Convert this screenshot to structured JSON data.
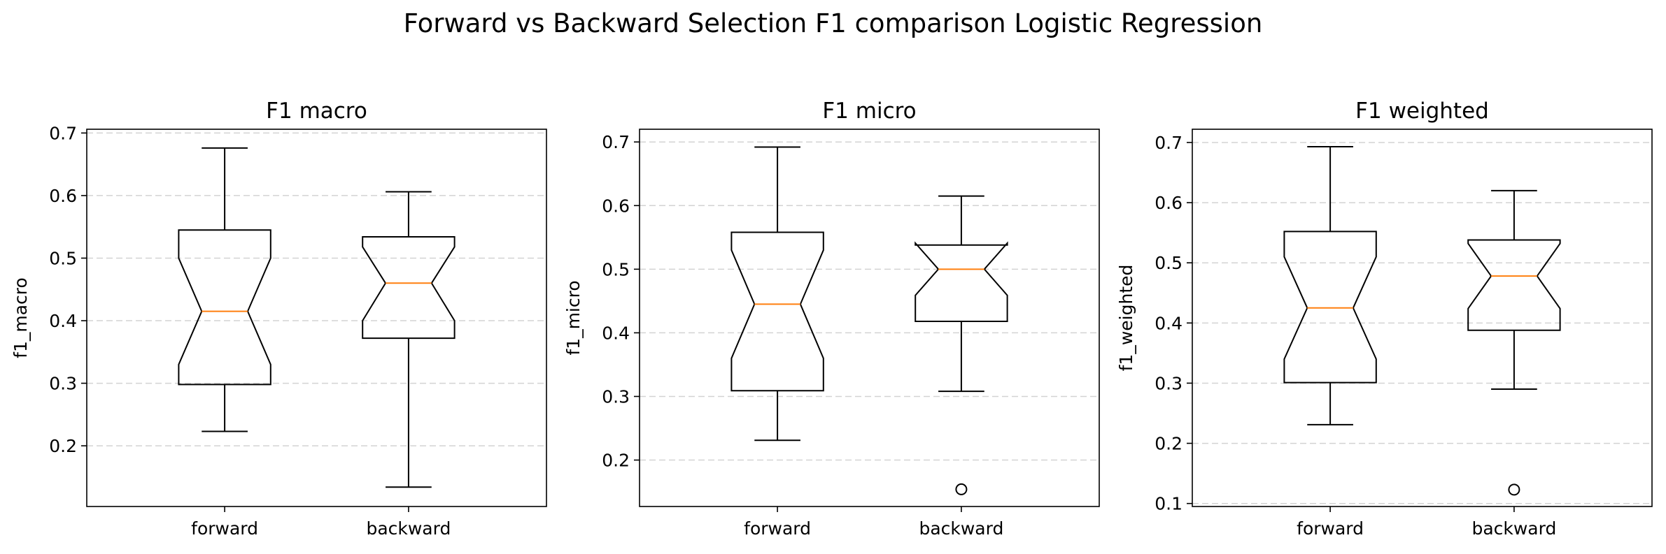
{
  "figure": {
    "title": "Forward vs Backward Selection F1 comparison Logistic Regression"
  },
  "colors": {
    "box": "#000000",
    "median": "#ff7f0e",
    "grid": "#d3d3d3"
  },
  "chart_data": [
    {
      "type": "boxplot",
      "title": "F1 macro",
      "ylabel": "f1_macro",
      "categories": [
        "forward",
        "backward"
      ],
      "ylim": [
        0.103,
        0.706
      ],
      "yticks": [
        0.2,
        0.3,
        0.4,
        0.5,
        0.6,
        0.7
      ],
      "ytick_labels": [
        "0.2",
        "0.3",
        "0.4",
        "0.5",
        "0.6",
        "0.7"
      ],
      "grid": true,
      "notched": true,
      "boxes": [
        {
          "whislo": 0.223,
          "q1": 0.298,
          "med": 0.415,
          "q3": 0.545,
          "whishi": 0.676,
          "cilo": 0.33,
          "cihi": 0.5,
          "fliers": []
        },
        {
          "whislo": 0.134,
          "q1": 0.372,
          "med": 0.46,
          "q3": 0.534,
          "whishi": 0.606,
          "cilo": 0.4,
          "cihi": 0.518,
          "fliers": []
        }
      ]
    },
    {
      "type": "boxplot",
      "title": "F1 micro",
      "ylabel": "f1_micro",
      "categories": [
        "forward",
        "backward"
      ],
      "ylim": [
        0.127,
        0.72
      ],
      "yticks": [
        0.2,
        0.3,
        0.4,
        0.5,
        0.6,
        0.7
      ],
      "ytick_labels": [
        "0.2",
        "0.3",
        "0.4",
        "0.5",
        "0.6",
        "0.7"
      ],
      "grid": true,
      "notched": true,
      "boxes": [
        {
          "whislo": 0.231,
          "q1": 0.309,
          "med": 0.445,
          "q3": 0.558,
          "whishi": 0.692,
          "cilo": 0.36,
          "cihi": 0.53,
          "fliers": []
        },
        {
          "whislo": 0.308,
          "q1": 0.418,
          "med": 0.5,
          "q3": 0.538,
          "whishi": 0.615,
          "cilo": 0.459,
          "cihi": 0.541,
          "fliers": [
            0.154
          ]
        }
      ]
    },
    {
      "type": "boxplot",
      "title": "F1 weighted",
      "ylabel": "f1_weighted",
      "categories": [
        "forward",
        "backward"
      ],
      "ylim": [
        0.095,
        0.722
      ],
      "yticks": [
        0.1,
        0.2,
        0.3,
        0.4,
        0.5,
        0.6,
        0.7
      ],
      "ytick_labels": [
        "0.1",
        "0.2",
        "0.3",
        "0.4",
        "0.5",
        "0.6",
        "0.7"
      ],
      "grid": true,
      "notched": true,
      "boxes": [
        {
          "whislo": 0.231,
          "q1": 0.301,
          "med": 0.425,
          "q3": 0.552,
          "whishi": 0.693,
          "cilo": 0.34,
          "cihi": 0.51,
          "fliers": []
        },
        {
          "whislo": 0.29,
          "q1": 0.388,
          "med": 0.478,
          "q3": 0.538,
          "whishi": 0.62,
          "cilo": 0.424,
          "cihi": 0.532,
          "fliers": [
            0.123
          ]
        }
      ]
    }
  ]
}
